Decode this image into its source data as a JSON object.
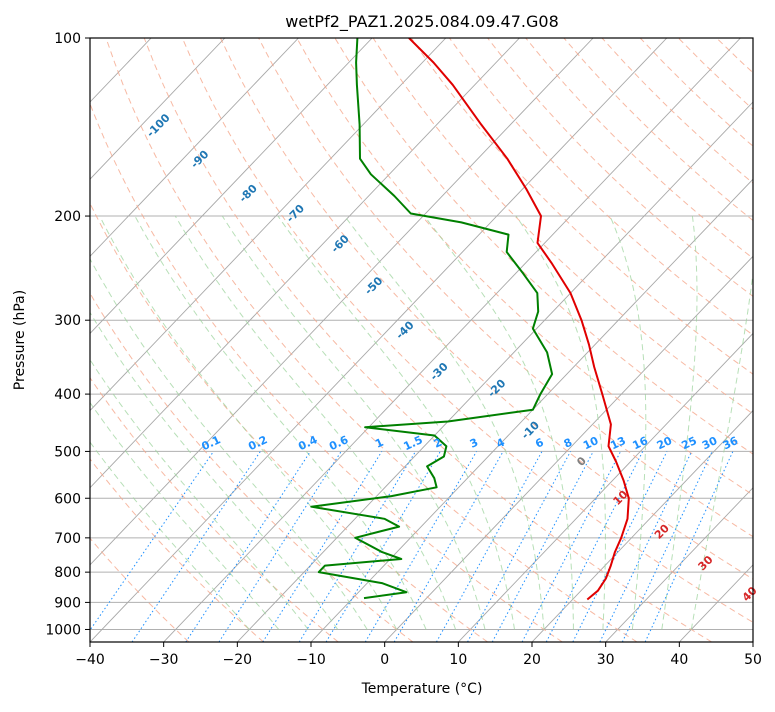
{
  "chart_data": {
    "type": "line",
    "title": "wetPf2_PAZ1.2025.084.09.47.G08",
    "xlabel": "Temperature (°C)",
    "ylabel": "Pressure (hPa)",
    "xlim": [
      -40,
      50
    ],
    "ylim": [
      1050,
      100
    ],
    "y_scale": "log",
    "skew": true,
    "grid": true,
    "x_ticks": [
      -40,
      -30,
      -20,
      -10,
      0,
      10,
      20,
      30,
      40,
      50
    ],
    "y_ticks": [
      100,
      200,
      300,
      400,
      500,
      600,
      700,
      800,
      900,
      1000
    ],
    "series": [
      {
        "color": "#e00000",
        "points": [
          {
            "p": 890,
            "t": 22.0
          },
          {
            "p": 860,
            "t": 22.3
          },
          {
            "p": 820,
            "t": 21.8
          },
          {
            "p": 780,
            "t": 20.8
          },
          {
            "p": 740,
            "t": 19.6
          },
          {
            "p": 700,
            "t": 18.6
          },
          {
            "p": 650,
            "t": 17.0
          },
          {
            "p": 600,
            "t": 14.5
          },
          {
            "p": 560,
            "t": 11.5
          },
          {
            "p": 520,
            "t": 8.0
          },
          {
            "p": 490,
            "t": 5.0
          },
          {
            "p": 450,
            "t": 2.5
          },
          {
            "p": 400,
            "t": -2.6
          },
          {
            "p": 360,
            "t": -7.2
          },
          {
            "p": 330,
            "t": -10.8
          },
          {
            "p": 300,
            "t": -15.0
          },
          {
            "p": 270,
            "t": -20.0
          },
          {
            "p": 240,
            "t": -26.5
          },
          {
            "p": 222,
            "t": -31.0
          },
          {
            "p": 200,
            "t": -34.0
          },
          {
            "p": 180,
            "t": -39.5
          },
          {
            "p": 160,
            "t": -46.0
          },
          {
            "p": 140,
            "t": -54.0
          },
          {
            "p": 120,
            "t": -63.0
          },
          {
            "p": 110,
            "t": -68.5
          },
          {
            "p": 100,
            "t": -75.0
          }
        ]
      },
      {
        "color": "#008000",
        "points": [
          {
            "p": 885,
            "t": -8.5
          },
          {
            "p": 865,
            "t": -3.5
          },
          {
            "p": 835,
            "t": -8.0
          },
          {
            "p": 800,
            "t": -18.0
          },
          {
            "p": 780,
            "t": -18.0
          },
          {
            "p": 760,
            "t": -8.5
          },
          {
            "p": 740,
            "t": -12.0
          },
          {
            "p": 700,
            "t": -17.5
          },
          {
            "p": 670,
            "t": -13.0
          },
          {
            "p": 650,
            "t": -16.0
          },
          {
            "p": 620,
            "t": -27.5
          },
          {
            "p": 595,
            "t": -18.0
          },
          {
            "p": 575,
            "t": -13.0
          },
          {
            "p": 555,
            "t": -14.5
          },
          {
            "p": 530,
            "t": -17.0
          },
          {
            "p": 510,
            "t": -16.0
          },
          {
            "p": 490,
            "t": -17.0
          },
          {
            "p": 470,
            "t": -20.0
          },
          {
            "p": 455,
            "t": -30.5
          },
          {
            "p": 445,
            "t": -20.0
          },
          {
            "p": 425,
            "t": -10.0
          },
          {
            "p": 400,
            "t": -11.0
          },
          {
            "p": 370,
            "t": -12.0
          },
          {
            "p": 340,
            "t": -15.5
          },
          {
            "p": 310,
            "t": -20.5
          },
          {
            "p": 290,
            "t": -22.0
          },
          {
            "p": 270,
            "t": -24.5
          },
          {
            "p": 250,
            "t": -29.0
          },
          {
            "p": 230,
            "t": -34.0
          },
          {
            "p": 215,
            "t": -36.0
          },
          {
            "p": 205,
            "t": -44.0
          },
          {
            "p": 198,
            "t": -52.0
          },
          {
            "p": 185,
            "t": -56.5
          },
          {
            "p": 170,
            "t": -62.5
          },
          {
            "p": 160,
            "t": -66.0
          },
          {
            "p": 140,
            "t": -70.5
          },
          {
            "p": 120,
            "t": -76.0
          },
          {
            "p": 110,
            "t": -79.0
          },
          {
            "p": 100,
            "t": -82.0
          }
        ]
      }
    ],
    "annotations": {
      "isotherm_labels": [
        {
          "text": "-100",
          "color": "#1f77b4"
        },
        {
          "text": "-90",
          "color": "#1f77b4"
        },
        {
          "text": "-80",
          "color": "#1f77b4"
        },
        {
          "text": "-70",
          "color": "#1f77b4"
        },
        {
          "text": "-60",
          "color": "#1f77b4"
        },
        {
          "text": "-50",
          "color": "#1f77b4"
        },
        {
          "text": "-40",
          "color": "#1f77b4"
        },
        {
          "text": "-30",
          "color": "#1f77b4"
        },
        {
          "text": "-20",
          "color": "#1f77b4"
        },
        {
          "text": "-10",
          "color": "#1f77b4"
        },
        {
          "text": "0",
          "color": "#808080"
        },
        {
          "text": "10",
          "color": "#d62728"
        },
        {
          "text": "20",
          "color": "#d62728"
        },
        {
          "text": "30",
          "color": "#d62728"
        },
        {
          "text": "40",
          "color": "#d62728"
        }
      ],
      "mixing_ratio_labels": [
        "0.1",
        "0.2",
        "0.4",
        "0.6",
        "1",
        "1.5",
        "2",
        "3",
        "4",
        "6",
        "8",
        "10",
        "13",
        "16",
        "20",
        "25",
        "30",
        "36"
      ],
      "mixing_ratio_color": "#1e90ff"
    }
  }
}
